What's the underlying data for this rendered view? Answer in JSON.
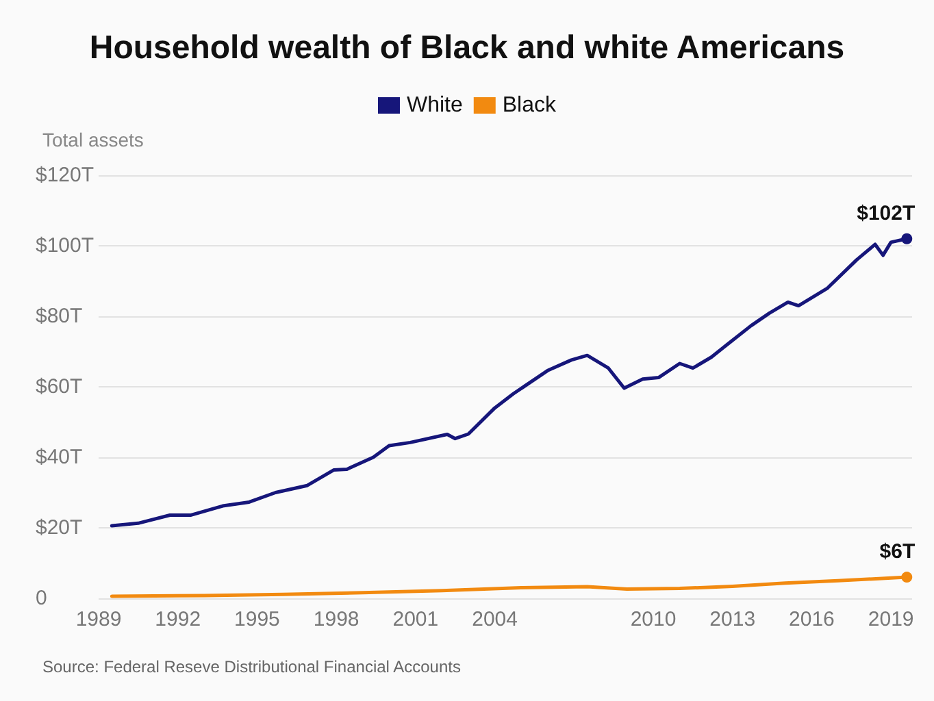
{
  "chart_data": {
    "type": "line",
    "title": "Household wealth of Black and white Americans",
    "ylabel": "Total assets",
    "annotations": [
      "Source: Federal Reseve Distributional Financial Accounts"
    ],
    "x": [
      1989.5,
      1990.5,
      1991.7,
      1992.5,
      1993.7,
      1994.7,
      1995.7,
      1996.9,
      1997.9,
      1998.4,
      1999.4,
      2000,
      2000.8,
      2002.2,
      2002.5,
      2003,
      2004,
      2004.7,
      2006,
      2006.9,
      2007.5,
      2008.3,
      2008.9,
      2009.6,
      2010.2,
      2011,
      2011.5,
      2012.2,
      2012.8,
      2013.7,
      2014.4,
      2015.1,
      2015.5,
      2016.6,
      2017.7,
      2018.4,
      2018.7,
      2019,
      2019.6
    ],
    "series": [
      {
        "name": "White",
        "color": "#16167a",
        "values": [
          20.6,
          21.3,
          23.6,
          23.6,
          26.2,
          27.3,
          30,
          32,
          36.4,
          36.6,
          40,
          43.3,
          44.2,
          46.5,
          45.3,
          46.6,
          54,
          58,
          64.6,
          67.6,
          68.9,
          65.3,
          59.6,
          62.2,
          62.6,
          66.6,
          65.3,
          68.4,
          72,
          77.3,
          80.9,
          84,
          83,
          88,
          96,
          100.4,
          97.3,
          101,
          102
        ],
        "value_labels": [
          null,
          null,
          null,
          null,
          null,
          null,
          null,
          null,
          null,
          null,
          null,
          null,
          null,
          null,
          null,
          null,
          null,
          null,
          null,
          null,
          null,
          null,
          null,
          null,
          null,
          null,
          null,
          null,
          null,
          null,
          null,
          null,
          null,
          null,
          null,
          null,
          null,
          null,
          "$102T"
        ]
      },
      {
        "name": "Black",
        "color": "#f28a10",
        "x": [
          1989.5,
          1993,
          1996,
          1999,
          2002,
          2005,
          2007.5,
          2009,
          2011,
          2013,
          2015,
          2017,
          2019.6
        ],
        "values": [
          0.6,
          0.8,
          1.1,
          1.6,
          2.2,
          3,
          3.3,
          2.6,
          2.8,
          3.4,
          4.3,
          5,
          6
        ],
        "value_labels": [
          null,
          null,
          null,
          null,
          null,
          null,
          null,
          null,
          null,
          null,
          null,
          null,
          "$6T"
        ]
      }
    ],
    "xlim": [
      1989,
      2019.8
    ],
    "xticks": [
      1989,
      1992,
      1995,
      1998,
      2001,
      2004,
      2010,
      2013,
      2016,
      2019
    ],
    "ylim": [
      0,
      120
    ],
    "yticks": [
      {
        "value": 0,
        "label": "0"
      },
      {
        "value": 20,
        "label": "$20T"
      },
      {
        "value": 40,
        "label": "$40T"
      },
      {
        "value": 60,
        "label": "$60T"
      },
      {
        "value": 80,
        "label": "$80T"
      },
      {
        "value": 100,
        "label": "$100T"
      },
      {
        "value": 120,
        "label": "$120T"
      }
    ],
    "grid": "y",
    "legend": "top"
  }
}
